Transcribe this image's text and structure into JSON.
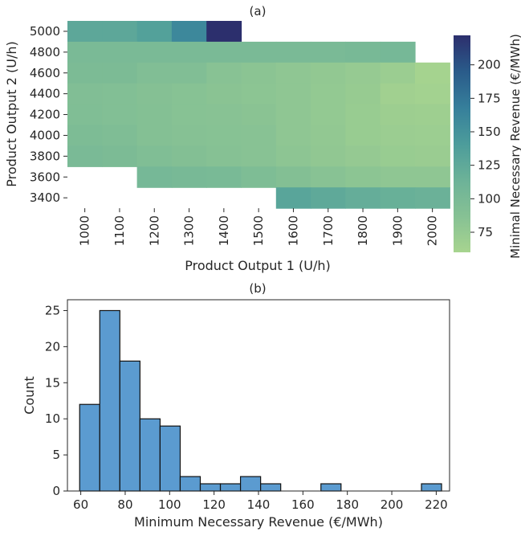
{
  "figure": {
    "panels": [
      "(a)",
      "(b)"
    ]
  },
  "chart_data": [
    {
      "type": "heatmap",
      "title": "(a)",
      "xlabel": "Product Output 1 (U/h)",
      "ylabel": "Product Output 2 (U/h)",
      "x": [
        1000,
        1100,
        1200,
        1300,
        1400,
        1500,
        1600,
        1700,
        1800,
        1900,
        2000
      ],
      "y": [
        5000,
        4800,
        4600,
        4400,
        4200,
        4000,
        3800,
        3600,
        3400
      ],
      "xticklabels": [
        "1000",
        "1100",
        "1200",
        "1300",
        "1400",
        "1500",
        "1600",
        "1700",
        "1800",
        "1900",
        "2000"
      ],
      "yticklabels": [
        "5000",
        "4800",
        "4600",
        "4400",
        "4200",
        "4000",
        "3800",
        "3600",
        "3400"
      ],
      "colormap": "YlGnBu-like",
      "colorbar": {
        "label": "Minimal Necessary Revenue (€/MWh)",
        "min": 60,
        "max": 222,
        "ticks": [
          75,
          100,
          125,
          150,
          175,
          200
        ],
        "colors": [
          "#a7d48f",
          "#86c194",
          "#6cb298",
          "#4c9c9b",
          "#367f9b",
          "#2a5b8a",
          "#2c2f6d"
        ]
      },
      "values": [
        [
          127,
          127,
          135,
          160,
          222,
          null,
          null,
          null,
          null,
          null,
          null
        ],
        [
          99,
          99,
          99,
          99,
          99,
          99,
          99,
          99,
          102,
          104,
          null
        ],
        [
          97,
          97,
          92,
          92,
          85,
          83,
          80,
          77,
          74,
          70,
          62
        ],
        [
          92,
          91,
          88,
          86,
          84,
          82,
          80,
          76,
          73,
          65,
          63
        ],
        [
          93,
          91,
          89,
          86,
          85,
          84,
          80,
          76,
          72,
          68,
          67
        ],
        [
          96,
          94,
          89,
          87,
          86,
          85,
          80,
          77,
          72,
          70,
          69
        ],
        [
          99,
          97,
          93,
          90,
          87,
          85,
          81,
          78,
          75,
          72,
          71
        ],
        [
          null,
          null,
          104,
          102,
          100,
          95,
          90,
          85,
          82,
          80,
          80
        ],
        [
          null,
          null,
          null,
          null,
          null,
          null,
          130,
          125,
          120,
          117,
          115
        ]
      ]
    },
    {
      "type": "bar",
      "subtype": "histogram",
      "title": "(b)",
      "xlabel": "Minimum Necessary Revenue (€/MWh)",
      "ylabel": "Count",
      "xlim": [
        54,
        226
      ],
      "ylim": [
        0,
        26.5
      ],
      "xticks": [
        60,
        80,
        100,
        120,
        140,
        160,
        180,
        200,
        220
      ],
      "yticks": [
        0,
        5,
        10,
        15,
        20,
        25
      ],
      "bin_start": 59.5,
      "bin_width": 9.05,
      "counts": [
        12,
        25,
        18,
        10,
        9,
        2,
        1,
        1,
        2,
        1,
        0,
        0,
        1,
        0,
        0,
        0,
        0,
        1
      ],
      "bar_color": "#5b9bd0"
    }
  ]
}
